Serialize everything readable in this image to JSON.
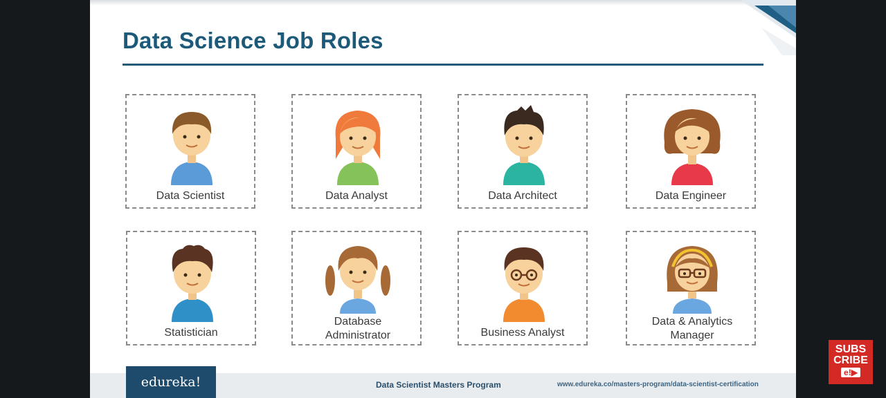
{
  "slide": {
    "title": "Data Science Job Roles",
    "roles": [
      {
        "label": "Data Scientist",
        "avatar": "boy-brown-hair-blue-shirt-icon"
      },
      {
        "label": "Data Analyst",
        "avatar": "girl-orange-hair-green-shirt-icon"
      },
      {
        "label": "Data Architect",
        "avatar": "boy-spiky-hair-teal-shirt-icon"
      },
      {
        "label": "Data Engineer",
        "avatar": "woman-curly-hair-red-top-icon"
      },
      {
        "label": "Statistician",
        "avatar": "boy-curly-hair-blue-shirt-icon"
      },
      {
        "label": "Database Administrator",
        "avatar": "girl-pigtails-blue-shirt-icon"
      },
      {
        "label": "Business Analyst",
        "avatar": "boy-glasses-orange-shirt-icon"
      },
      {
        "label": "Data & Analytics Manager",
        "avatar": "woman-glasses-headband-icon"
      }
    ]
  },
  "footer": {
    "brand": "edureka!",
    "program": "Data Scientist Masters Program",
    "url": "www.edureka.co/masters-program/data-scientist-certification"
  },
  "subscribe_badge": {
    "line1": "SUBS",
    "line2": "CRIBE",
    "logo": "e!▶"
  },
  "colors": {
    "title": "#1d5a7a",
    "rule": "#24597a",
    "brand_box": "#1e4a6b",
    "subscribe": "#d42a26"
  }
}
